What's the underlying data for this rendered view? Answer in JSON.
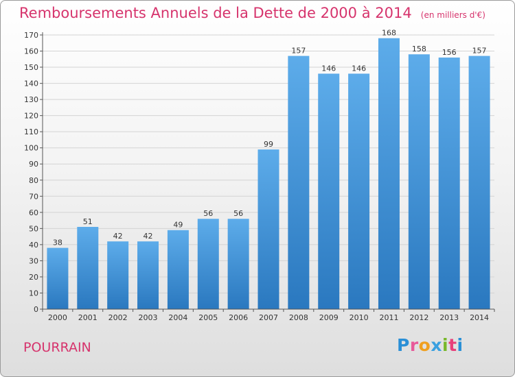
{
  "chart_data": {
    "type": "bar",
    "title": "Remboursements Annuels de la Dette de 2000 à 2014",
    "unit": "(en milliers d'€)",
    "categories": [
      "2000",
      "2001",
      "2002",
      "2003",
      "2004",
      "2005",
      "2006",
      "2007",
      "2008",
      "2009",
      "2010",
      "2011",
      "2012",
      "2013",
      "2014"
    ],
    "values": [
      38,
      51,
      42,
      42,
      49,
      56,
      56,
      99,
      157,
      146,
      146,
      168,
      158,
      156,
      157
    ],
    "ylim": [
      0,
      170
    ],
    "yticks": [
      0,
      10,
      20,
      30,
      40,
      50,
      60,
      70,
      80,
      90,
      100,
      110,
      120,
      130,
      140,
      150,
      160,
      170
    ],
    "grid": true,
    "bar_color_top": "#5dacea",
    "bar_color_bottom": "#2a78bf"
  },
  "location": {
    "name": "POURRAIN"
  },
  "brand": {
    "letters": [
      "P",
      "r",
      "o",
      "x",
      "i",
      "t",
      "i"
    ],
    "colors": [
      "#2a8fd6",
      "#e85a9a",
      "#f0a020",
      "#3aa0e0",
      "#78b82a",
      "#e8407a",
      "#2a8fd6"
    ]
  }
}
